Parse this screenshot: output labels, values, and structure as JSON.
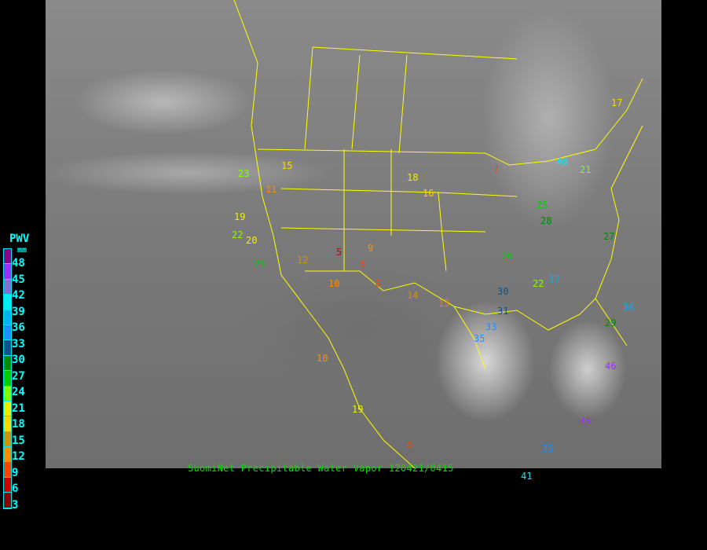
{
  "caption": "SuomiNet Precipitable Water Vapor  120421/0415",
  "legend": {
    "title": "PWV",
    "unit": "mm",
    "levels": [
      {
        "label": "48",
        "color": "#8b008b"
      },
      {
        "label": "45",
        "color": "#9b30ff"
      },
      {
        "label": "42",
        "color": "#8470d0"
      },
      {
        "label": "39",
        "color": "#00eeee"
      },
      {
        "label": "36",
        "color": "#00b2ee"
      },
      {
        "label": "33",
        "color": "#1e90ff"
      },
      {
        "label": "30",
        "color": "#10508b"
      },
      {
        "label": "27",
        "color": "#008b00"
      },
      {
        "label": "24",
        "color": "#00cd00"
      },
      {
        "label": "21",
        "color": "#7fff00"
      },
      {
        "label": "18",
        "color": "#eeee00"
      },
      {
        "label": "15",
        "color": "#ffd700"
      },
      {
        "label": "12",
        "color": "#cd950c"
      },
      {
        "label": "9",
        "color": "#ff8c00"
      },
      {
        "label": "6",
        "color": "#ff4500"
      },
      {
        "label": "3",
        "color": "#cd0000"
      },
      {
        "label": "",
        "color": "#8b0000"
      }
    ]
  },
  "stations": [
    "17",
    "23",
    "19",
    "22",
    "20",
    "24",
    "25",
    "11",
    "15",
    "16",
    "12",
    "9",
    "10",
    "8",
    "5",
    "6",
    "7",
    "13",
    "14",
    "18",
    "26",
    "28",
    "29",
    "30",
    "31",
    "33",
    "35",
    "36",
    "37",
    "40",
    "46",
    "41",
    "45",
    "35",
    "6",
    "19",
    "10",
    "21",
    "27",
    "22"
  ]
}
